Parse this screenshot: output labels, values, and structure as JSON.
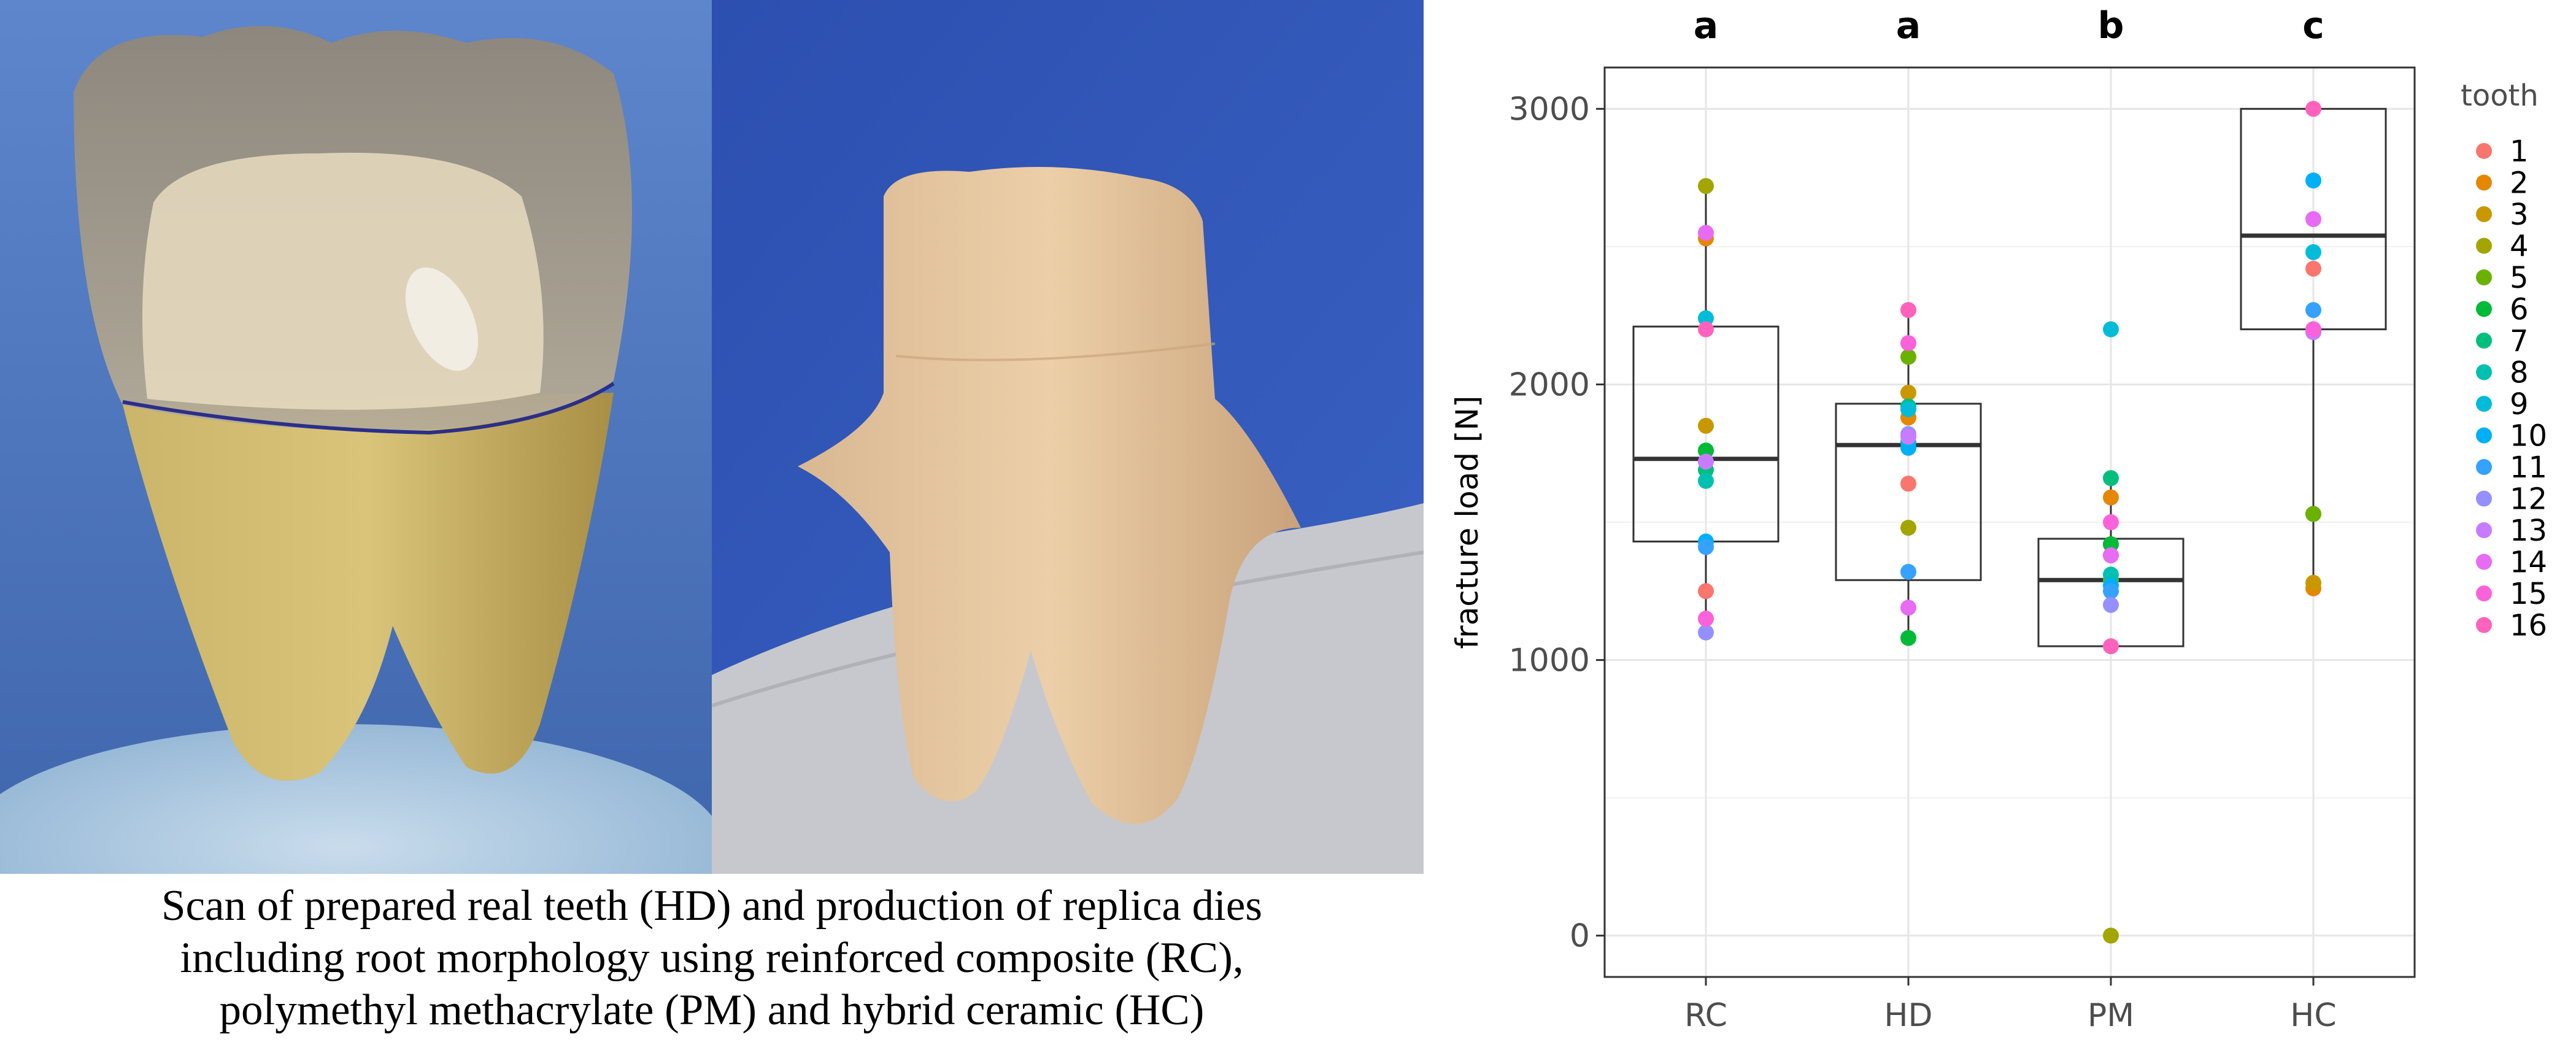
{
  "caption": {
    "lines": [
      "Scan of prepared real teeth (HD) and production of replica dies",
      "including root morphology using reinforced composite (RC),",
      "polymethyl methacrylate (PM) and hybrid ceramic (HC)"
    ]
  },
  "chart_data": {
    "type": "boxplot-with-points",
    "title": "",
    "xlabel": "",
    "ylabel": "fracture load [N]",
    "ylim": [
      -150,
      3150
    ],
    "yticks": [
      0,
      1000,
      2000,
      3000
    ],
    "grid": true,
    "legend": {
      "title": "tooth",
      "position": "right"
    },
    "categories": [
      "RC",
      "HD",
      "PM",
      "HC"
    ],
    "significance_letters": [
      "a",
      "a",
      "b",
      "c"
    ],
    "boxes": [
      {
        "category": "RC",
        "q1": 1430,
        "median": 1730,
        "q3": 2210,
        "whisker_low": 1100,
        "whisker_high": 2720
      },
      {
        "category": "HD",
        "q1": 1290,
        "median": 1780,
        "q3": 1930,
        "whisker_low": 1080,
        "whisker_high": 2270
      },
      {
        "category": "PM",
        "q1": 1050,
        "median": 1290,
        "q3": 1440,
        "whisker_low": 1050,
        "whisker_high": 1660
      },
      {
        "category": "HC",
        "q1": 2200,
        "median": 2540,
        "q3": 3000,
        "whisker_low": 1260,
        "whisker_high": 3000
      }
    ],
    "series": [
      {
        "name": "1",
        "color": "#F8766D",
        "values": [
          1250,
          1640,
          1380,
          2420
        ]
      },
      {
        "name": "2",
        "color": "#E58700",
        "values": [
          2530,
          1880,
          1590,
          1260
        ]
      },
      {
        "name": "3",
        "color": "#C99800",
        "values": [
          1850,
          1970,
          1420,
          1280
        ]
      },
      {
        "name": "4",
        "color": "#A3A500",
        "values": [
          2720,
          1480,
          0,
          1530
        ]
      },
      {
        "name": "5",
        "color": "#6BB100",
        "values": [
          1760,
          2100,
          1290,
          1530
        ]
      },
      {
        "name": "6",
        "color": "#00BA38",
        "values": [
          1760,
          1080,
          1420,
          2200
        ]
      },
      {
        "name": "7",
        "color": "#00BF7D",
        "values": [
          1690,
          1920,
          1660,
          2190
        ]
      },
      {
        "name": "8",
        "color": "#00C0AF",
        "values": [
          1650,
          1790,
          1310,
          2190
        ]
      },
      {
        "name": "9",
        "color": "#00BCD8",
        "values": [
          2240,
          1910,
          2200,
          2480
        ]
      },
      {
        "name": "10",
        "color": "#00B0F6",
        "values": [
          1430,
          1770,
          1270,
          2740
        ]
      },
      {
        "name": "11",
        "color": "#35A2FF",
        "values": [
          1410,
          1320,
          1250,
          2270
        ]
      },
      {
        "name": "12",
        "color": "#9590FF",
        "values": [
          1100,
          1820,
          1200,
          2200
        ]
      },
      {
        "name": "13",
        "color": "#C77CFF",
        "values": [
          1720,
          1810,
          1380,
          2190
        ]
      },
      {
        "name": "14",
        "color": "#E76BF3",
        "values": [
          2550,
          1190,
          1380,
          2600
        ]
      },
      {
        "name": "15",
        "color": "#FA62DB",
        "values": [
          1150,
          2150,
          1500,
          2200
        ]
      },
      {
        "name": "16",
        "color": "#FF62BC",
        "values": [
          2200,
          2270,
          1050,
          3000
        ]
      }
    ]
  },
  "photos": {
    "left": {
      "background": "#4a78c4"
    },
    "right": {
      "background": "#2a4fb0"
    }
  }
}
